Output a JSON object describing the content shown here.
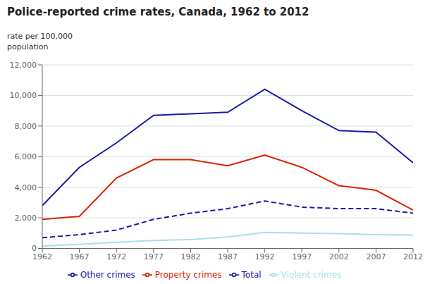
{
  "chart_data": {
    "type": "line",
    "title": "Police-reported crime rates, Canada, 1962 to 2012",
    "ylabel": "rate per 100,000\npopulation",
    "x": [
      1962,
      1967,
      1972,
      1977,
      1982,
      1987,
      1992,
      1997,
      2002,
      2007,
      2012
    ],
    "series": [
      {
        "name": "Total",
        "color": "#1a1aaa",
        "line_style": "solid",
        "values": [
          2800,
          5300,
          6900,
          8700,
          8800,
          8900,
          10400,
          9000,
          7700,
          7600,
          5600
        ]
      },
      {
        "name": "Property crimes",
        "color": "#dd2200",
        "line_style": "solid",
        "values": [
          1900,
          2100,
          4600,
          5800,
          5800,
          5400,
          6100,
          5300,
          4100,
          3800,
          2500
        ]
      },
      {
        "name": "Violent crimes",
        "color": "#aaddee",
        "line_style": "solid",
        "values": [
          150,
          270,
          400,
          520,
          580,
          750,
          1050,
          1000,
          970,
          900,
          870
        ]
      },
      {
        "name": "Other crimes",
        "color": "#1a1aaa",
        "line_style": "dashed",
        "values": [
          700,
          900,
          1200,
          1900,
          2300,
          2600,
          3100,
          2700,
          2600,
          2600,
          2300
        ]
      }
    ],
    "xlim": [
      1962,
      2012
    ],
    "xticks": [
      1962,
      1967,
      1972,
      1977,
      1982,
      1987,
      1992,
      1997,
      2002,
      2007,
      2012
    ],
    "ylim": [
      0,
      12000
    ],
    "yticks": [
      0,
      {
        "value": 2000,
        "label": "2,000"
      },
      {
        "value": 4000,
        "label": "4,000"
      },
      {
        "value": 6000,
        "label": "6,000"
      },
      {
        "value": 8000,
        "label": "8,000"
      },
      {
        "value": 10000,
        "label": "10,000"
      },
      {
        "value": 12000,
        "label": "12,000"
      }
    ],
    "grid": true,
    "legend": "bottom"
  }
}
